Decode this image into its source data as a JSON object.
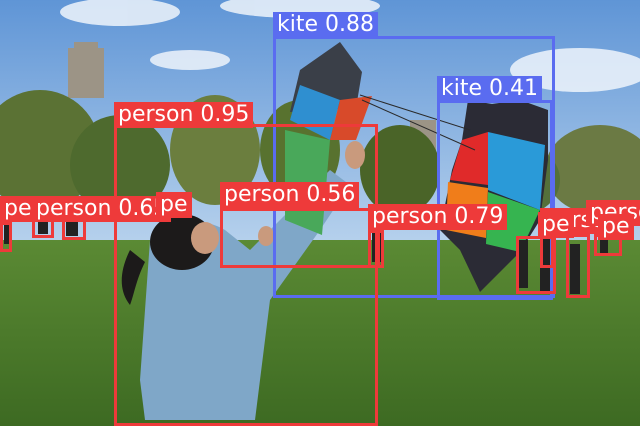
{
  "colors": {
    "person": "#ee3a3a",
    "kite": "#5a6cf0",
    "sky": "#7fb0e6",
    "grass": "#4f7a2c"
  },
  "detections": [
    {
      "label": "kite 0.88",
      "class": "kite"
    },
    {
      "label": "kite 0.41",
      "class": "kite"
    },
    {
      "label": "person 0.95",
      "class": "person"
    },
    {
      "label": "person 0.56",
      "class": "person"
    },
    {
      "label": "person 0.79",
      "class": "person"
    },
    {
      "label": "person 0.65",
      "class": "person"
    },
    {
      "label": "person",
      "class": "person"
    },
    {
      "label": "person",
      "class": "person"
    },
    {
      "label": "pe",
      "class": "person"
    },
    {
      "label": "pe",
      "class": "person"
    },
    {
      "label": "pe",
      "class": "person"
    },
    {
      "label": "pe",
      "class": "person"
    }
  ]
}
